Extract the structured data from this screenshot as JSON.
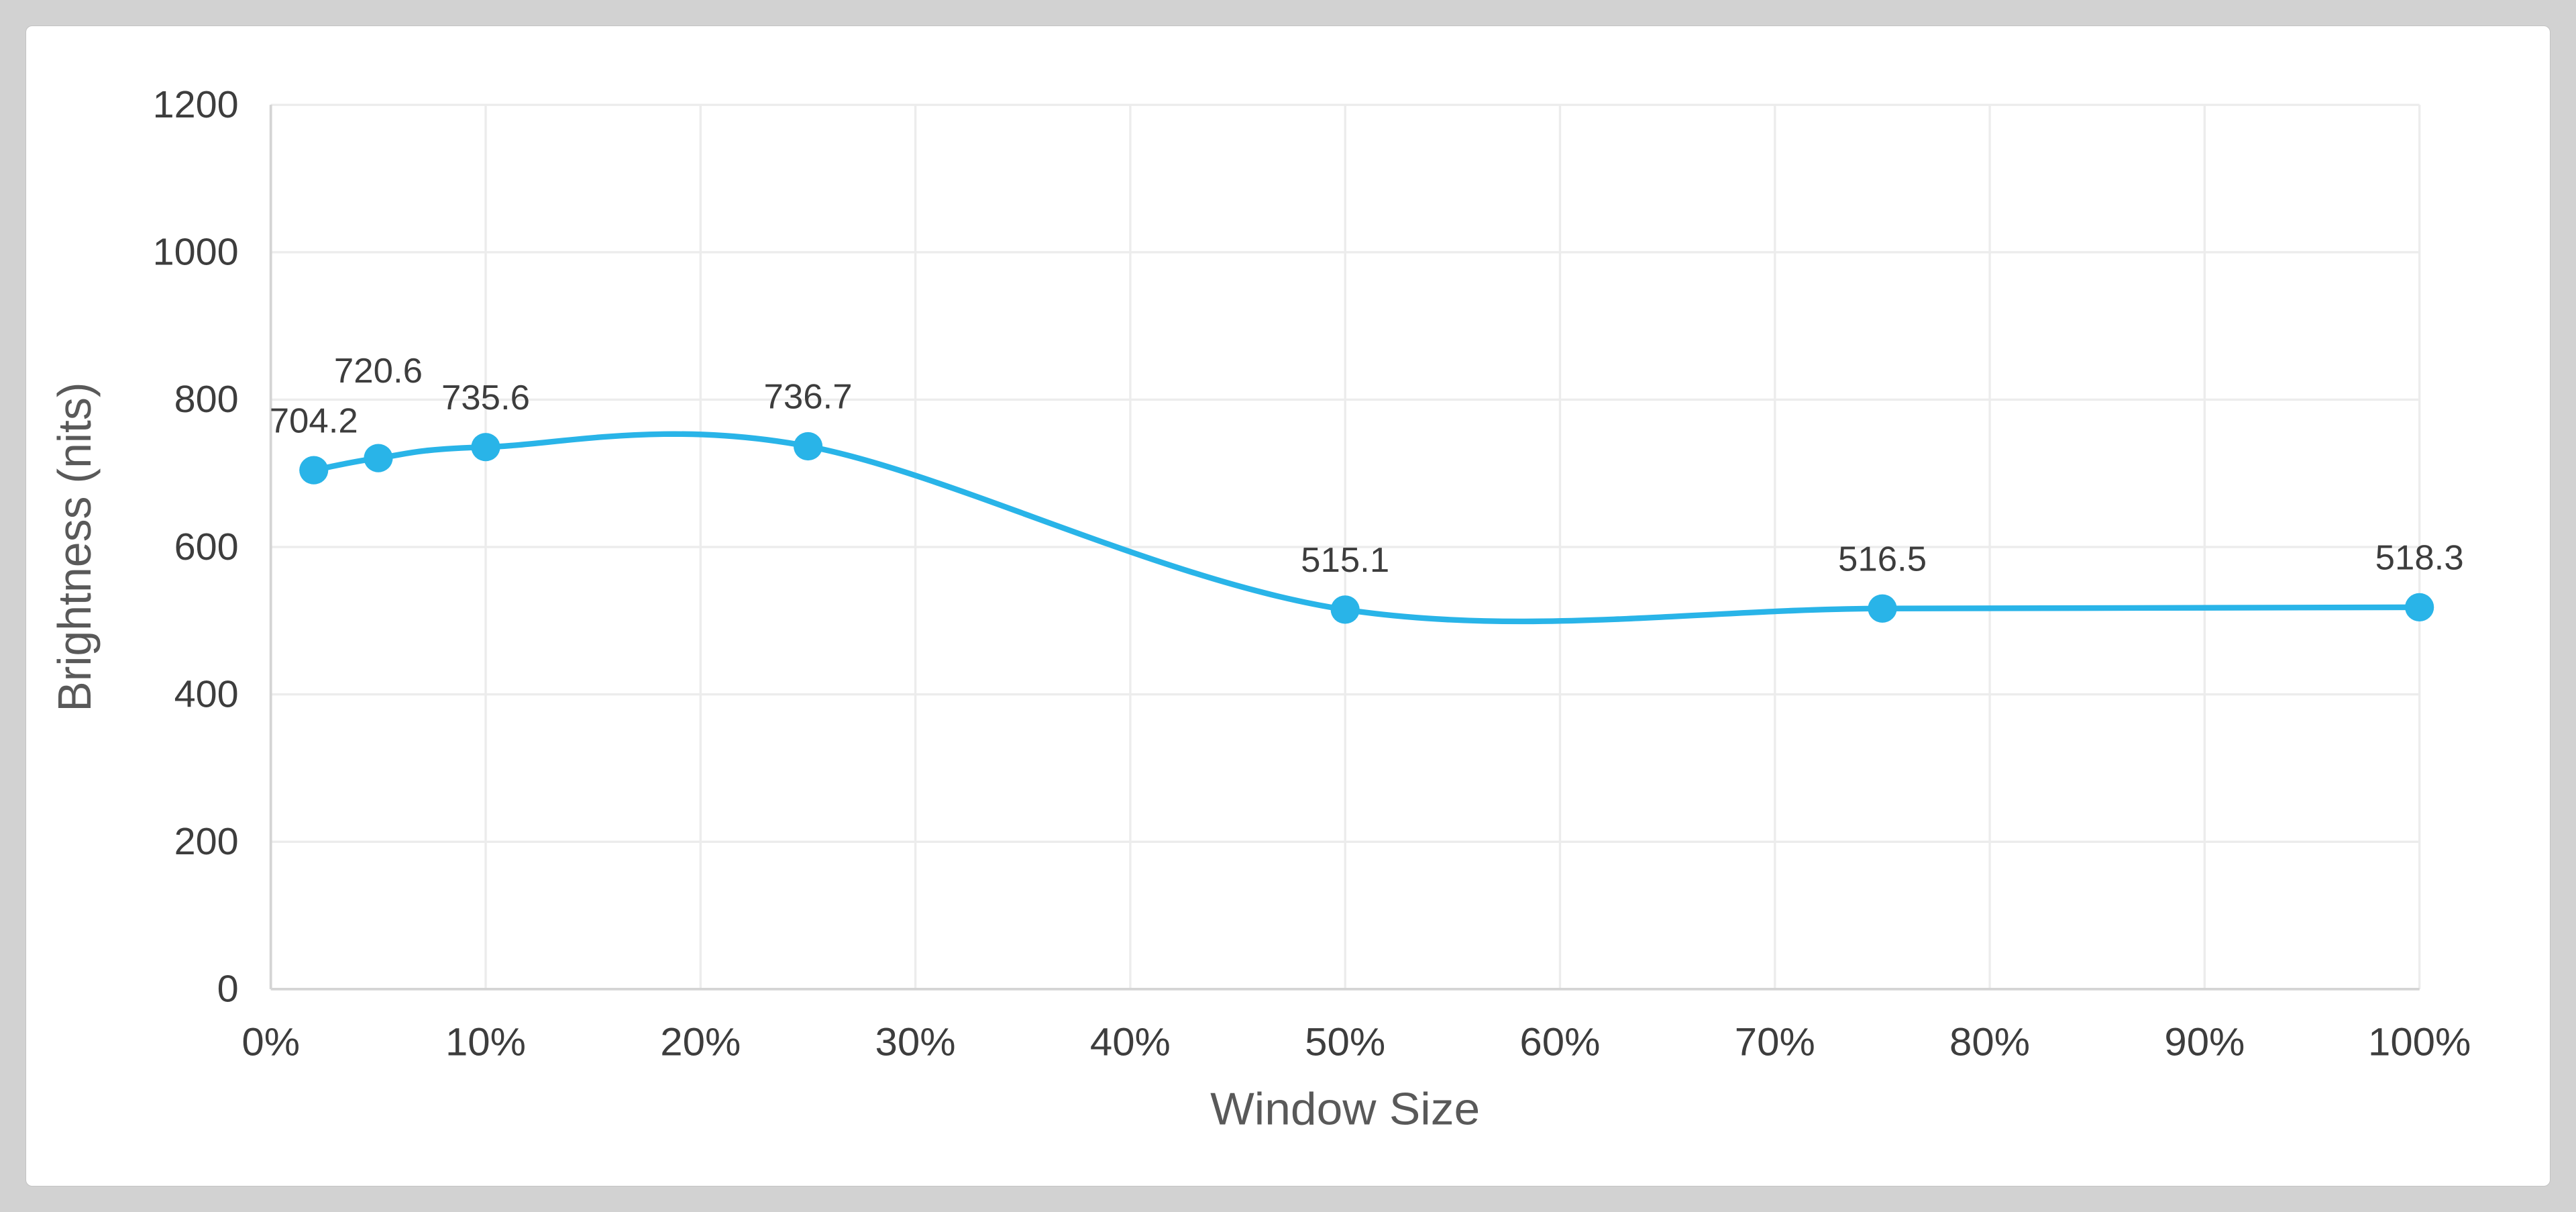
{
  "chart_data": {
    "type": "line",
    "title": "",
    "xlabel": "Window Size",
    "ylabel": "Brightness (nits)",
    "x": [
      2,
      5,
      10,
      25,
      50,
      75,
      100
    ],
    "values": [
      704.2,
      720.6,
      735.6,
      736.7,
      515.1,
      516.5,
      518.3
    ],
    "data_labels": [
      "704.2",
      "720.6",
      "735.6",
      "736.7",
      "515.1",
      "516.5",
      "518.3"
    ],
    "x_tick_values": [
      0,
      10,
      20,
      30,
      40,
      50,
      60,
      70,
      80,
      90,
      100
    ],
    "x_ticks": [
      "0%",
      "10%",
      "20%",
      "30%",
      "40%",
      "50%",
      "60%",
      "70%",
      "80%",
      "90%",
      "100%"
    ],
    "y_tick_values": [
      0,
      200,
      400,
      600,
      800,
      1000,
      1200
    ],
    "y_ticks": [
      "0",
      "200",
      "400",
      "600",
      "800",
      "1000",
      "1200"
    ],
    "xlim": [
      0,
      100
    ],
    "ylim": [
      0,
      1200
    ],
    "grid": true,
    "legend": "none",
    "smooth": true,
    "line_color": "#29b4e8",
    "marker_color": "#29b4e8",
    "tick_label_color": "#3d3d3d",
    "axis_title_color": "#595959",
    "data_label_color": "#3d3d3d",
    "gridline_color": "#ececec",
    "axis_line_color": "#d4d4d4",
    "plot_background": "#ffffff",
    "page_background": "#d2d2d2"
  }
}
